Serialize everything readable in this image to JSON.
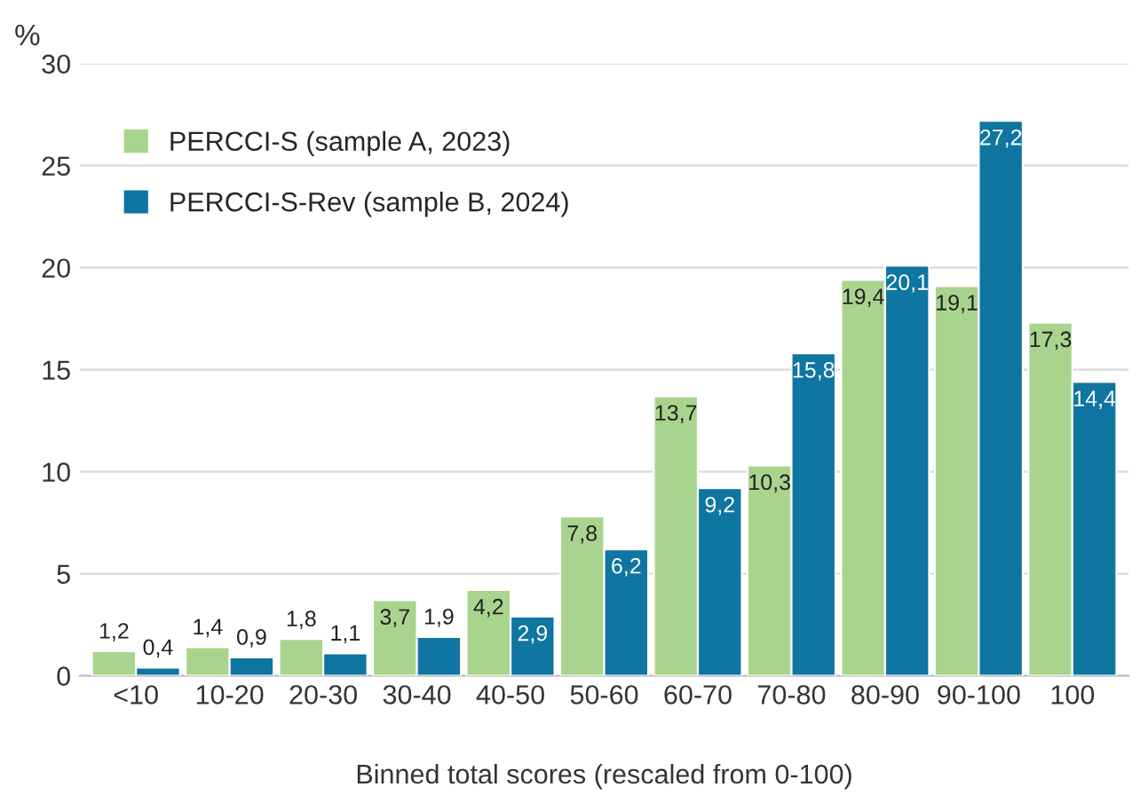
{
  "chart_data": {
    "type": "bar",
    "xlabel": "Binned total scores (rescaled from 0-100)",
    "ylabel": "%",
    "categories": [
      "<10",
      "10-20",
      "20-30",
      "30-40",
      "40-50",
      "50-60",
      "60-70",
      "70-80",
      "80-90",
      "90-100",
      "100"
    ],
    "series": [
      {
        "name": "PERCCI-S (sample A, 2023)",
        "color": "#a9d48e",
        "values": [
          1.2,
          1.4,
          1.8,
          3.7,
          4.2,
          7.8,
          13.7,
          10.3,
          19.4,
          19.1,
          17.3
        ],
        "value_labels": [
          "1,2",
          "1,4",
          "1,8",
          "3,7",
          "4,2",
          "7,8",
          "13,7",
          "10,3",
          "19,4",
          "19,1",
          "17,3"
        ]
      },
      {
        "name": "PERCCI-S-Rev (sample B, 2024)",
        "color": "#0f75a1",
        "values": [
          0.4,
          0.9,
          1.1,
          1.9,
          2.9,
          6.2,
          9.2,
          15.8,
          20.1,
          27.2,
          14.4
        ],
        "value_labels": [
          "0,4",
          "0,9",
          "1,1",
          "1,9",
          "2,9",
          "6,2",
          "9,2",
          "15,8",
          "20,1",
          "27,2",
          "14,4"
        ]
      }
    ],
    "ylim": [
      0,
      30
    ],
    "yticks": [
      0,
      5,
      10,
      15,
      20,
      25,
      30
    ],
    "grid": "y",
    "legend": "top left"
  }
}
